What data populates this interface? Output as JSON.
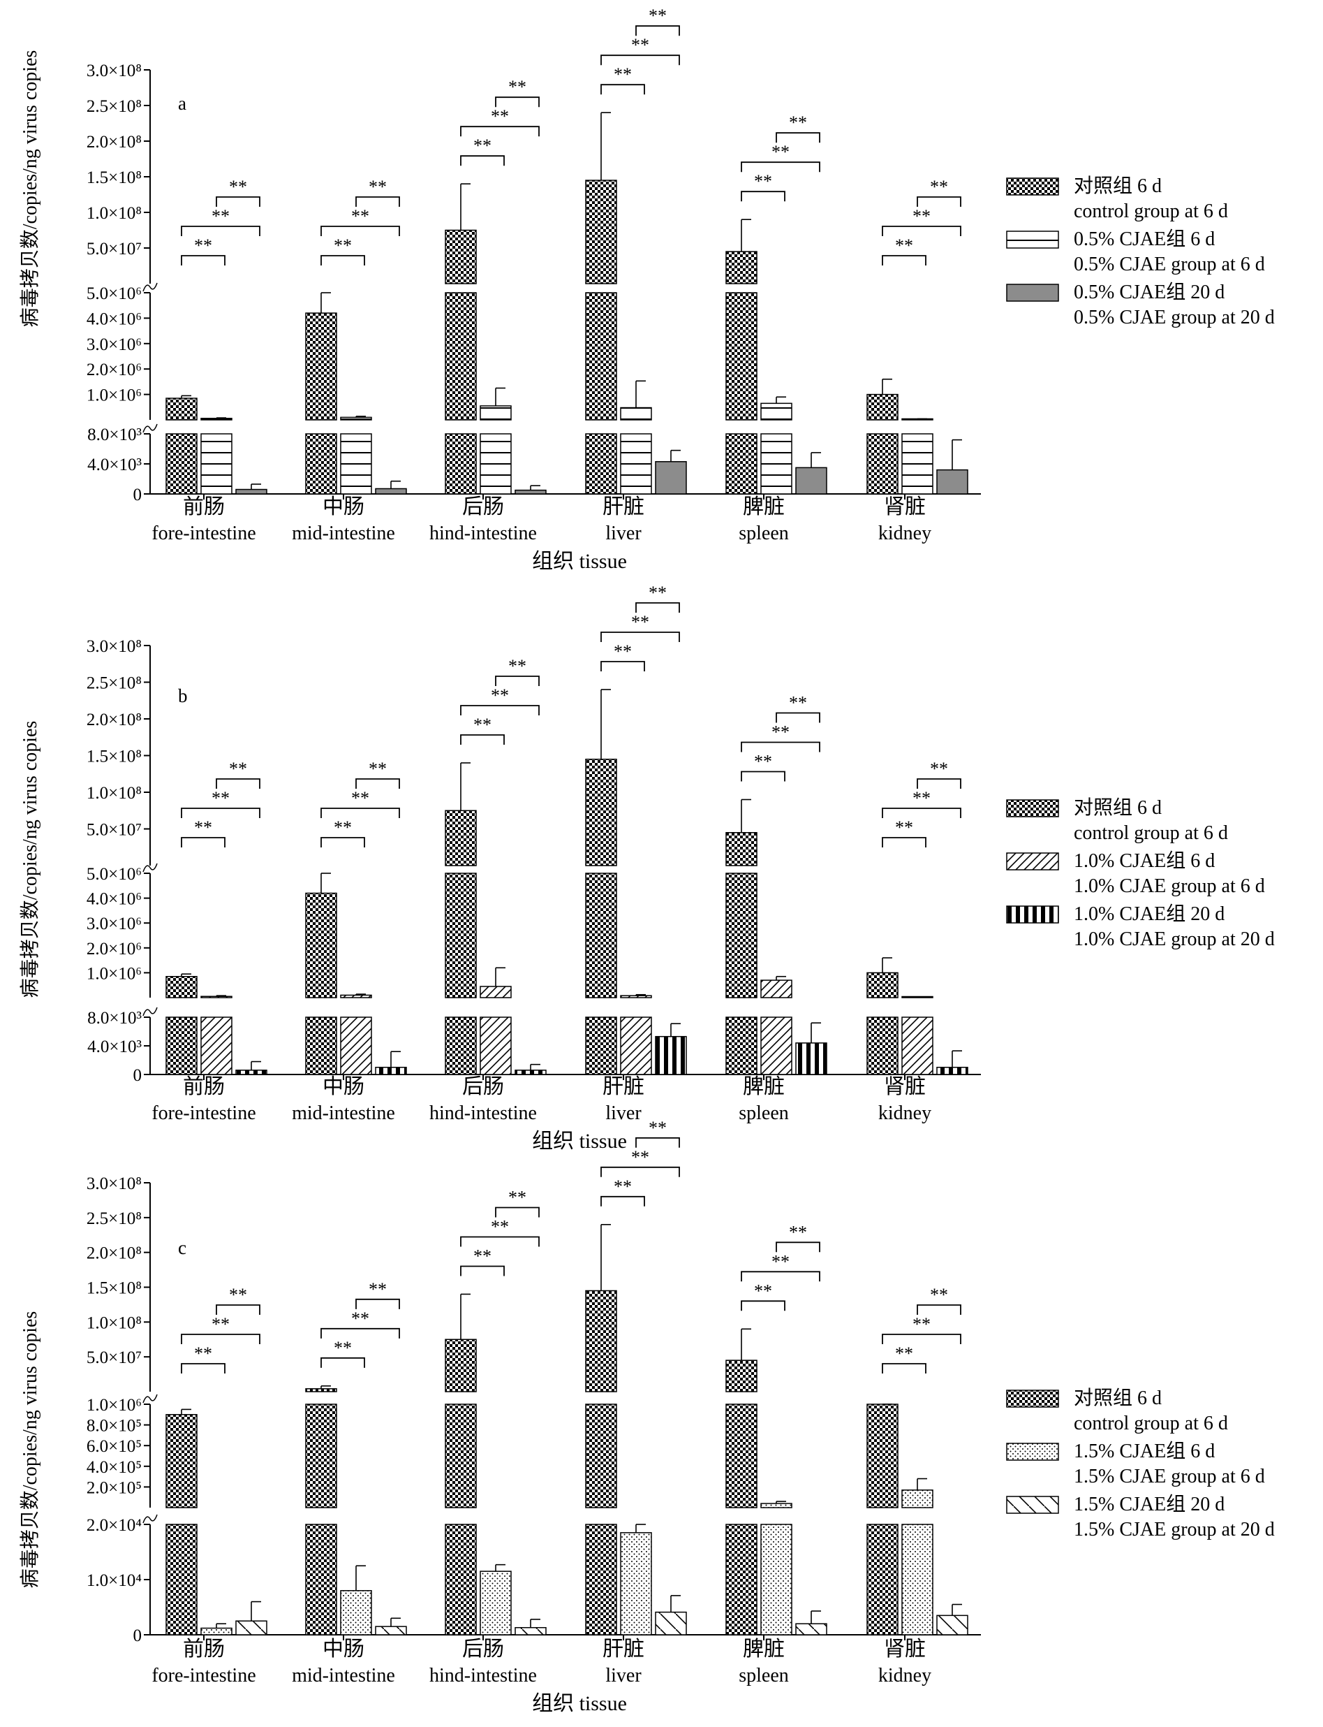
{
  "chart_data": [
    {
      "panel_label": "a",
      "type": "bar",
      "subtype": "grouped bar chart with broken y-axis (three segments) and error bars",
      "ylabel": "病毒拷贝数/copies/ng virus copies",
      "xlabel": "组织 tissue",
      "categories": [
        {
          "zh": "前肠",
          "en": "fore-intestine"
        },
        {
          "zh": "中肠",
          "en": "mid-intestine"
        },
        {
          "zh": "后肠",
          "en": "hind-intestine"
        },
        {
          "zh": "肝脏",
          "en": "liver"
        },
        {
          "zh": "脾脏",
          "en": "spleen"
        },
        {
          "zh": "肾脏",
          "en": "kidney"
        }
      ],
      "y_segments": [
        {
          "range": [
            0,
            8000
          ],
          "ticks": [
            {
              "value": 0,
              "label": "0"
            },
            {
              "value": 4000,
              "label": "4.0×10³"
            },
            {
              "value": 8000,
              "label": "8.0×10³"
            }
          ]
        },
        {
          "range": [
            0,
            5000000
          ],
          "ticks": [
            {
              "value": 1000000,
              "label": "1.0×10⁶"
            },
            {
              "value": 2000000,
              "label": "2.0×10⁶"
            },
            {
              "value": 3000000,
              "label": "3.0×10⁶"
            },
            {
              "value": 4000000,
              "label": "4.0×10⁶"
            },
            {
              "value": 5000000,
              "label": "5.0×10⁶"
            }
          ]
        },
        {
          "range": [
            0,
            300000000
          ],
          "ticks": [
            {
              "value": 50000000,
              "label": "5.0×10⁷"
            },
            {
              "value": 100000000,
              "label": "1.0×10⁸"
            },
            {
              "value": 150000000,
              "label": "1.5×10⁸"
            },
            {
              "value": 200000000,
              "label": "2.0×10⁸"
            },
            {
              "value": 250000000,
              "label": "2.5×10⁸"
            },
            {
              "value": 300000000,
              "label": "3.0×10⁸"
            }
          ]
        }
      ],
      "series": [
        {
          "name_zh": "对照组 6 d",
          "name_en": "control group at 6 d",
          "pattern": "checker",
          "values": [
            850000,
            4200000,
            75000000,
            145000000,
            45000000,
            1000000
          ],
          "errors": [
            100000,
            800000,
            65000000,
            95000000,
            45000000,
            600000
          ]
        },
        {
          "name_zh": "0.5% CJAE组 6 d",
          "name_en": "0.5% CJAE group at 6 d",
          "pattern": "hlines",
          "values": [
            60000,
            100000,
            550000,
            480000,
            650000,
            30000
          ],
          "errors": [
            20000,
            40000,
            700000,
            1050000,
            250000,
            10000
          ]
        },
        {
          "name_zh": "0.5% CJAE组 20 d",
          "name_en": "0.5% CJAE group at 20 d",
          "pattern": "gray",
          "values": [
            600,
            700,
            500,
            4300,
            3500,
            3200
          ],
          "errors": [
            700,
            1000,
            600,
            1500,
            2000,
            4000
          ]
        }
      ],
      "significance": [
        [
          {
            "pair": [
              0,
              1
            ],
            "label": "**"
          },
          {
            "pair": [
              0,
              2
            ],
            "label": "**"
          },
          {
            "pair": [
              1,
              2
            ],
            "label": "**"
          }
        ],
        [
          {
            "pair": [
              0,
              1
            ],
            "label": "**"
          },
          {
            "pair": [
              0,
              2
            ],
            "label": "**"
          },
          {
            "pair": [
              1,
              2
            ],
            "label": "**"
          }
        ],
        [
          {
            "pair": [
              0,
              1
            ],
            "label": "**"
          },
          {
            "pair": [
              0,
              2
            ],
            "label": "**"
          },
          {
            "pair": [
              1,
              2
            ],
            "label": "**"
          }
        ],
        [
          {
            "pair": [
              0,
              1
            ],
            "label": "**"
          },
          {
            "pair": [
              0,
              2
            ],
            "label": "**"
          },
          {
            "pair": [
              1,
              2
            ],
            "label": "**"
          }
        ],
        [
          {
            "pair": [
              0,
              1
            ],
            "label": "**"
          },
          {
            "pair": [
              0,
              2
            ],
            "label": "**"
          },
          {
            "pair": [
              1,
              2
            ],
            "label": "**"
          }
        ],
        [
          {
            "pair": [
              0,
              1
            ],
            "label": "**"
          },
          {
            "pair": [
              0,
              2
            ],
            "label": "**"
          },
          {
            "pair": [
              1,
              2
            ],
            "label": "**"
          }
        ]
      ]
    },
    {
      "panel_label": "b",
      "type": "bar",
      "subtype": "grouped bar chart with broken y-axis (three segments) and error bars",
      "ylabel": "病毒拷贝数/copies/ng virus copies",
      "xlabel": "组织 tissue",
      "categories": [
        {
          "zh": "前肠",
          "en": "fore-intestine"
        },
        {
          "zh": "中肠",
          "en": "mid-intestine"
        },
        {
          "zh": "后肠",
          "en": "hind-intestine"
        },
        {
          "zh": "肝脏",
          "en": "liver"
        },
        {
          "zh": "脾脏",
          "en": "spleen"
        },
        {
          "zh": "肾脏",
          "en": "kidney"
        }
      ],
      "y_segments": [
        {
          "range": [
            0,
            8000
          ],
          "ticks": [
            {
              "value": 0,
              "label": "0"
            },
            {
              "value": 4000,
              "label": "4.0×10³"
            },
            {
              "value": 8000,
              "label": "8.0×10³"
            }
          ]
        },
        {
          "range": [
            0,
            5000000
          ],
          "ticks": [
            {
              "value": 1000000,
              "label": "1.0×10⁶"
            },
            {
              "value": 2000000,
              "label": "2.0×10⁶"
            },
            {
              "value": 3000000,
              "label": "3.0×10⁶"
            },
            {
              "value": 4000000,
              "label": "4.0×10⁶"
            },
            {
              "value": 5000000,
              "label": "5.0×10⁶"
            }
          ]
        },
        {
          "range": [
            0,
            300000000
          ],
          "ticks": [
            {
              "value": 50000000,
              "label": "5.0×10⁷"
            },
            {
              "value": 100000000,
              "label": "1.0×10⁸"
            },
            {
              "value": 150000000,
              "label": "1.5×10⁸"
            },
            {
              "value": 200000000,
              "label": "2.0×10⁸"
            },
            {
              "value": 250000000,
              "label": "2.5×10⁸"
            },
            {
              "value": 300000000,
              "label": "3.0×10⁸"
            }
          ]
        }
      ],
      "series": [
        {
          "name_zh": "对照组 6 d",
          "name_en": "control group at 6 d",
          "pattern": "checker",
          "values": [
            850000,
            4200000,
            75000000,
            145000000,
            45000000,
            1000000
          ],
          "errors": [
            100000,
            800000,
            65000000,
            95000000,
            45000000,
            600000
          ]
        },
        {
          "name_zh": "1.0% CJAE组 6 d",
          "name_en": "1.0% CJAE group at 6 d",
          "pattern": "diag",
          "values": [
            50000,
            100000,
            450000,
            80000,
            700000,
            10000
          ],
          "errors": [
            30000,
            40000,
            750000,
            40000,
            150000,
            5000
          ]
        },
        {
          "name_zh": "1.0% CJAE组 20 d",
          "name_en": "1.0% CJAE group at 20 d",
          "pattern": "vstripe",
          "values": [
            600,
            1000,
            600,
            5300,
            4400,
            1000
          ],
          "errors": [
            1200,
            2200,
            800,
            1800,
            2800,
            2300
          ]
        }
      ],
      "significance": [
        [
          {
            "pair": [
              0,
              1
            ],
            "label": "**"
          },
          {
            "pair": [
              0,
              2
            ],
            "label": "**"
          },
          {
            "pair": [
              1,
              2
            ],
            "label": "**"
          }
        ],
        [
          {
            "pair": [
              0,
              1
            ],
            "label": "**"
          },
          {
            "pair": [
              0,
              2
            ],
            "label": "**"
          },
          {
            "pair": [
              1,
              2
            ],
            "label": "**"
          }
        ],
        [
          {
            "pair": [
              0,
              1
            ],
            "label": "**"
          },
          {
            "pair": [
              0,
              2
            ],
            "label": "**"
          },
          {
            "pair": [
              1,
              2
            ],
            "label": "**"
          }
        ],
        [
          {
            "pair": [
              0,
              1
            ],
            "label": "**"
          },
          {
            "pair": [
              0,
              2
            ],
            "label": "**"
          },
          {
            "pair": [
              1,
              2
            ],
            "label": "**"
          }
        ],
        [
          {
            "pair": [
              0,
              1
            ],
            "label": "**"
          },
          {
            "pair": [
              0,
              2
            ],
            "label": "**"
          },
          {
            "pair": [
              1,
              2
            ],
            "label": "**"
          }
        ],
        [
          {
            "pair": [
              0,
              1
            ],
            "label": "**"
          },
          {
            "pair": [
              0,
              2
            ],
            "label": "**"
          },
          {
            "pair": [
              1,
              2
            ],
            "label": "**"
          }
        ]
      ]
    },
    {
      "panel_label": "c",
      "type": "bar",
      "subtype": "grouped bar chart with broken y-axis (three segments) and error bars",
      "ylabel": "病毒拷贝数/copies/ng virus copies",
      "xlabel": "组织 tissue",
      "categories": [
        {
          "zh": "前肠",
          "en": "fore-intestine"
        },
        {
          "zh": "中肠",
          "en": "mid-intestine"
        },
        {
          "zh": "后肠",
          "en": "hind-intestine"
        },
        {
          "zh": "肝脏",
          "en": "liver"
        },
        {
          "zh": "脾脏",
          "en": "spleen"
        },
        {
          "zh": "肾脏",
          "en": "kidney"
        }
      ],
      "y_segments": [
        {
          "range": [
            0,
            20000
          ],
          "ticks": [
            {
              "value": 0,
              "label": "0"
            },
            {
              "value": 10000,
              "label": "1.0×10⁴"
            },
            {
              "value": 20000,
              "label": "2.0×10⁴"
            }
          ]
        },
        {
          "range": [
            0,
            1000000
          ],
          "ticks": [
            {
              "value": 200000,
              "label": "2.0×10⁵"
            },
            {
              "value": 400000,
              "label": "4.0×10⁵"
            },
            {
              "value": 600000,
              "label": "6.0×10⁵"
            },
            {
              "value": 800000,
              "label": "8.0×10⁵"
            },
            {
              "value": 1000000,
              "label": "1.0×10⁶"
            }
          ]
        },
        {
          "range": [
            0,
            300000000
          ],
          "ticks": [
            {
              "value": 50000000,
              "label": "5.0×10⁷"
            },
            {
              "value": 100000000,
              "label": "1.0×10⁸"
            },
            {
              "value": 150000000,
              "label": "1.5×10⁸"
            },
            {
              "value": 200000000,
              "label": "2.0×10⁸"
            },
            {
              "value": 250000000,
              "label": "2.5×10⁸"
            },
            {
              "value": 300000000,
              "label": "3.0×10⁸"
            }
          ]
        }
      ],
      "series": [
        {
          "name_zh": "对照组 6 d",
          "name_en": "control group at 6 d",
          "pattern": "checker",
          "values": [
            900000,
            4200000,
            75000000,
            145000000,
            45000000,
            1000000
          ],
          "errors": [
            50000,
            4000000,
            65000000,
            95000000,
            45000000,
            1000000
          ]
        },
        {
          "name_zh": "1.5% CJAE组 6 d",
          "name_en": "1.5% CJAE group at 6 d",
          "pattern": "dots",
          "values": [
            1200,
            8000,
            11500,
            18500,
            40000,
            170000
          ],
          "errors": [
            800,
            4500,
            1200,
            1500,
            20000,
            110000
          ]
        },
        {
          "name_zh": "1.5% CJAE组 20 d",
          "name_en": "1.5% CJAE group at 20 d",
          "pattern": "backdiag",
          "values": [
            2500,
            1500,
            1300,
            4100,
            2000,
            3500
          ],
          "errors": [
            3500,
            1500,
            1500,
            3000,
            2300,
            2000
          ]
        }
      ],
      "significance": [
        [
          {
            "pair": [
              0,
              1
            ],
            "label": "**"
          },
          {
            "pair": [
              0,
              2
            ],
            "label": "**"
          },
          {
            "pair": [
              1,
              2
            ],
            "label": "**"
          }
        ],
        [
          {
            "pair": [
              0,
              1
            ],
            "label": "**"
          },
          {
            "pair": [
              0,
              2
            ],
            "label": "**"
          },
          {
            "pair": [
              1,
              2
            ],
            "label": "**"
          }
        ],
        [
          {
            "pair": [
              0,
              1
            ],
            "label": "**"
          },
          {
            "pair": [
              0,
              2
            ],
            "label": "**"
          },
          {
            "pair": [
              1,
              2
            ],
            "label": "**"
          }
        ],
        [
          {
            "pair": [
              0,
              1
            ],
            "label": "**"
          },
          {
            "pair": [
              0,
              2
            ],
            "label": "**"
          },
          {
            "pair": [
              1,
              2
            ],
            "label": "**"
          }
        ],
        [
          {
            "pair": [
              0,
              1
            ],
            "label": "**"
          },
          {
            "pair": [
              0,
              2
            ],
            "label": "**"
          },
          {
            "pair": [
              1,
              2
            ],
            "label": "**"
          }
        ],
        [
          {
            "pair": [
              0,
              1
            ],
            "label": "**"
          },
          {
            "pair": [
              0,
              2
            ],
            "label": "**"
          },
          {
            "pair": [
              1,
              2
            ],
            "label": "**"
          }
        ]
      ]
    }
  ]
}
